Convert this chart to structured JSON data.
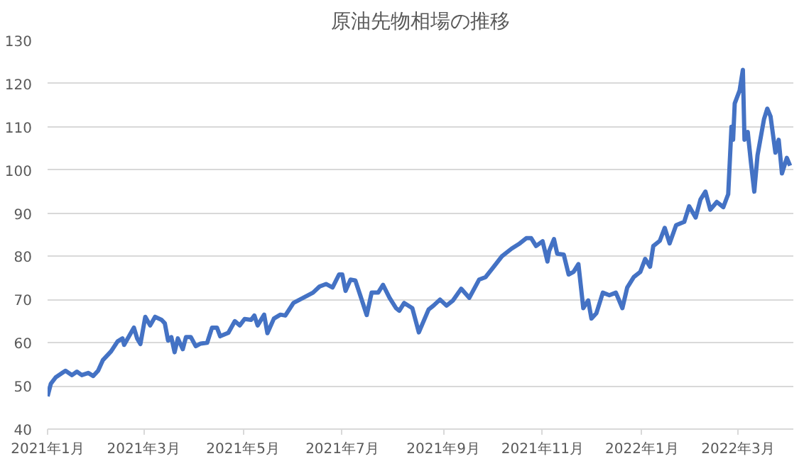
{
  "chart_data": {
    "type": "line",
    "title": "原油先物相場の推移",
    "x": [
      "2021-01-01",
      "2021-01-03",
      "2021-01-06",
      "2021-01-10",
      "2021-01-12",
      "2021-01-16",
      "2021-01-19",
      "2021-01-22",
      "2021-01-26",
      "2021-01-29",
      "2021-02-01",
      "2021-02-04",
      "2021-02-09",
      "2021-02-13",
      "2021-02-16",
      "2021-02-17",
      "2021-02-23",
      "2021-02-25",
      "2021-02-27",
      "2021-03-02",
      "2021-03-05",
      "2021-03-08",
      "2021-03-12",
      "2021-03-14",
      "2021-03-16",
      "2021-03-18",
      "2021-03-20",
      "2021-03-22",
      "2021-03-25",
      "2021-03-27",
      "2021-03-30",
      "2021-04-02",
      "2021-04-05",
      "2021-04-09",
      "2021-04-12",
      "2021-04-15",
      "2021-04-17",
      "2021-04-22",
      "2021-04-26",
      "2021-04-29",
      "2021-05-02",
      "2021-05-06",
      "2021-05-08",
      "2021-05-10",
      "2021-05-14",
      "2021-05-16",
      "2021-05-20",
      "2021-05-24",
      "2021-05-27",
      "2021-06-01",
      "2021-06-07",
      "2021-06-13",
      "2021-06-17",
      "2021-06-21",
      "2021-06-25",
      "2021-06-29",
      "2021-07-01",
      "2021-07-03",
      "2021-07-06",
      "2021-07-09",
      "2021-07-12",
      "2021-07-16",
      "2021-07-19",
      "2021-07-23",
      "2021-07-26",
      "2021-07-30",
      "2021-08-03",
      "2021-08-05",
      "2021-08-08",
      "2021-08-13",
      "2021-08-17",
      "2021-08-23",
      "2021-08-26",
      "2021-08-30",
      "2021-09-03",
      "2021-09-07",
      "2021-09-12",
      "2021-09-17",
      "2021-09-23",
      "2021-09-27",
      "2021-10-02",
      "2021-10-07",
      "2021-10-13",
      "2021-10-18",
      "2021-10-22",
      "2021-10-25",
      "2021-10-28",
      "2021-11-01",
      "2021-11-04",
      "2021-11-05",
      "2021-11-08",
      "2021-11-10",
      "2021-11-14",
      "2021-11-17",
      "2021-11-20",
      "2021-11-23",
      "2021-11-26",
      "2021-11-29",
      "2021-12-01",
      "2021-12-04",
      "2021-12-08",
      "2021-12-12",
      "2021-12-16",
      "2021-12-20",
      "2021-12-23",
      "2021-12-27",
      "2021-12-31",
      "2022-01-03",
      "2022-01-06",
      "2022-01-08",
      "2022-01-12",
      "2022-01-15",
      "2022-01-18",
      "2022-01-22",
      "2022-01-27",
      "2022-01-30",
      "2022-02-03",
      "2022-02-06",
      "2022-02-09",
      "2022-02-12",
      "2022-02-16",
      "2022-02-20",
      "2022-02-23",
      "2022-02-25",
      "2022-02-26",
      "2022-02-27",
      "2022-03-02",
      "2022-03-04",
      "2022-03-05",
      "2022-03-07",
      "2022-03-09",
      "2022-03-11",
      "2022-03-13",
      "2022-03-17",
      "2022-03-19",
      "2022-03-21",
      "2022-03-24",
      "2022-03-26",
      "2022-03-28",
      "2022-03-31",
      "2022-04-02"
    ],
    "series": [
      {
        "color": "#4472c4",
        "values": [
          47.6,
          50.5,
          52,
          53,
          53.5,
          52.5,
          53.3,
          52.5,
          53,
          52.3,
          53.5,
          56,
          58,
          60.3,
          61,
          59.5,
          63.5,
          61,
          59.7,
          66,
          64,
          66,
          65.3,
          64.5,
          60.5,
          61.3,
          57.8,
          61,
          58.5,
          61.3,
          61.3,
          59.2,
          59.8,
          60,
          63.5,
          63.5,
          61.5,
          62.3,
          65,
          64,
          65.5,
          65.3,
          66.3,
          64,
          66.5,
          62.2,
          65.6,
          66.5,
          66.3,
          69.2,
          70.4,
          71.6,
          73,
          73.6,
          72.8,
          75.8,
          75.8,
          72,
          74.6,
          74.4,
          71,
          66.4,
          71.6,
          71.6,
          73.4,
          70.4,
          68,
          67.4,
          69.2,
          68,
          62.4,
          67.7,
          68.6,
          70,
          68.6,
          69.8,
          72.5,
          70.4,
          74.6,
          75.2,
          77.6,
          80,
          81.8,
          83,
          84.2,
          84.2,
          82.4,
          83.5,
          78.8,
          81.2,
          84,
          80.6,
          80.4,
          75.8,
          76.4,
          78.2,
          68,
          69.8,
          65.6,
          66.8,
          71.6,
          71,
          71.6,
          68,
          72.8,
          75.2,
          76.4,
          79.4,
          77.6,
          82.4,
          83.6,
          86.6,
          83,
          87.2,
          88,
          91.6,
          89,
          93.2,
          95,
          90.8,
          92.6,
          91.4,
          94.4,
          110,
          107,
          115.4,
          118.4,
          123.2,
          107,
          108.8,
          101.6,
          95,
          103.4,
          111.8,
          114.2,
          112.4,
          104,
          107,
          99.2,
          102.8,
          101
        ]
      }
    ],
    "xlim": [
      "2021-01-01",
      "2022-04-04"
    ],
    "xticks": [
      {
        "value": "2021-01-01",
        "label": "2021年1月"
      },
      {
        "value": "2021-03-01",
        "label": "2021年3月"
      },
      {
        "value": "2021-05-01",
        "label": "2021年5月"
      },
      {
        "value": "2021-07-01",
        "label": "2021年7月"
      },
      {
        "value": "2021-09-01",
        "label": "2021年9月"
      },
      {
        "value": "2021-11-01",
        "label": "2021年11月"
      },
      {
        "value": "2022-01-01",
        "label": "2022年1月"
      },
      {
        "value": "2022-03-01",
        "label": "2022年3月"
      }
    ],
    "ylim": [
      40,
      130
    ],
    "yticks": [
      40,
      50,
      60,
      70,
      80,
      90,
      100,
      110,
      120,
      130
    ],
    "grid": "y",
    "marker": "none",
    "line_style": "solid"
  }
}
